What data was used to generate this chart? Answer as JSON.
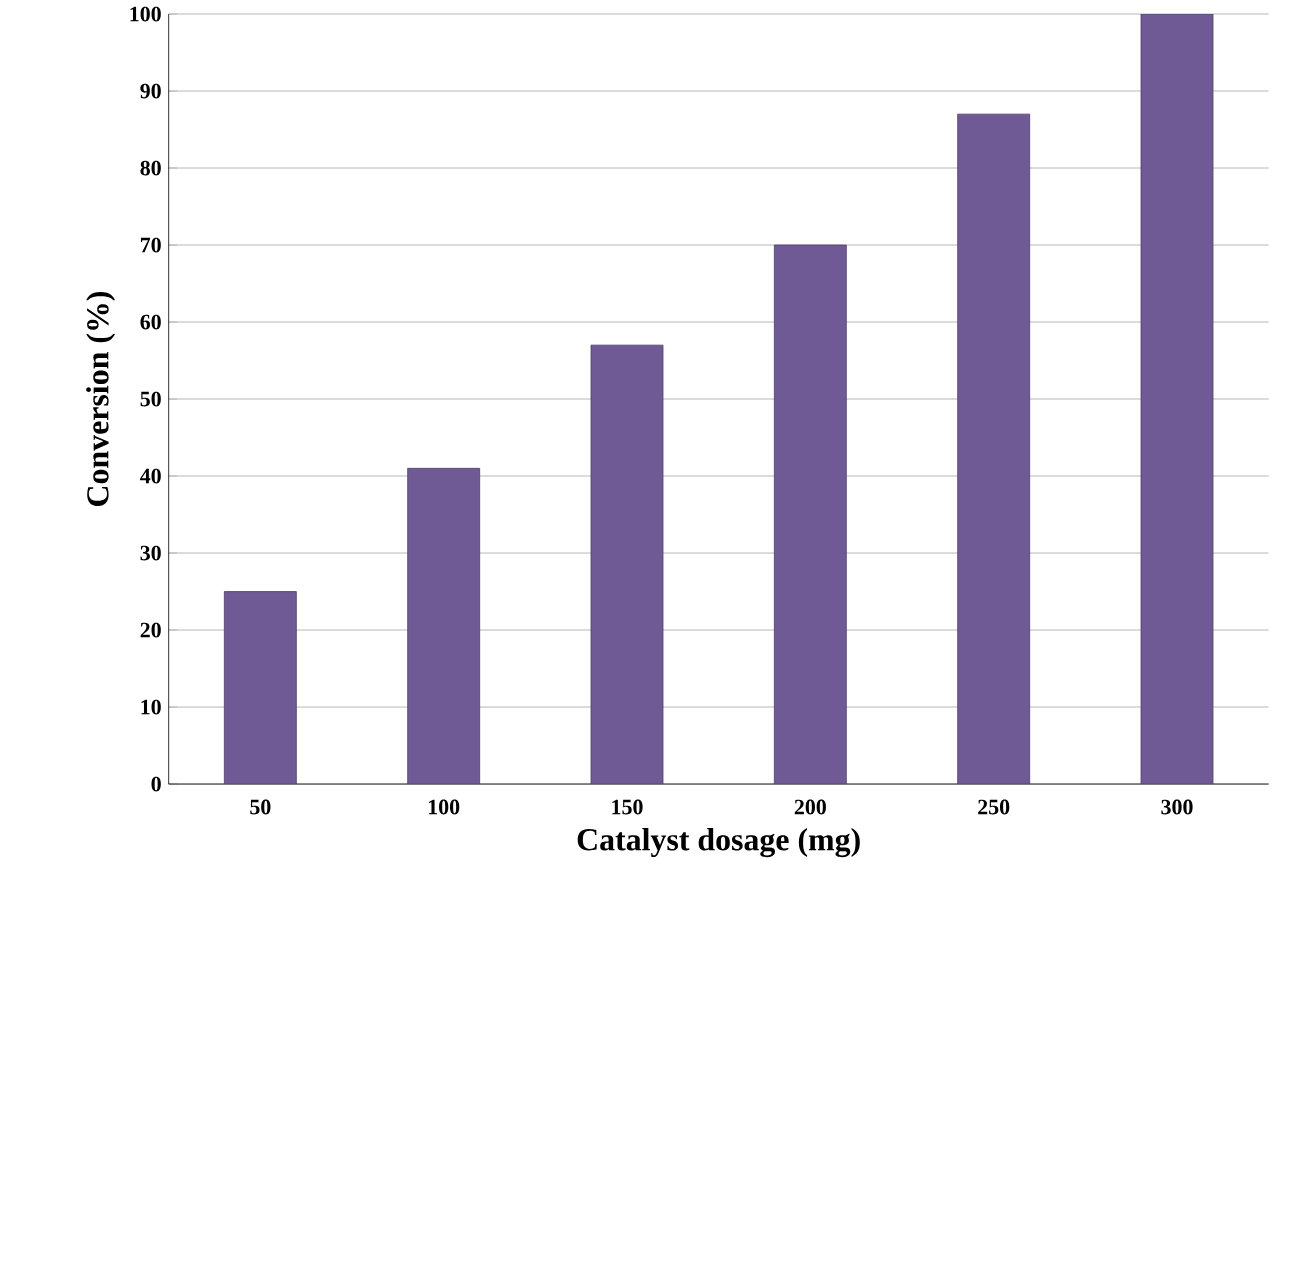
{
  "chart_data": {
    "type": "bar",
    "xlabel": "Catalyst dosage (mg)",
    "ylabel": "Conversion (%)",
    "categories": [
      "50",
      "100",
      "150",
      "200",
      "250",
      "300"
    ],
    "values": [
      25,
      41,
      57,
      70,
      87,
      100
    ],
    "color": "#6f5a96",
    "ylim": [
      0,
      100
    ],
    "yticks": [
      0,
      10,
      20,
      30,
      40,
      50,
      60,
      70,
      80,
      90,
      100
    ],
    "grid": "y"
  }
}
